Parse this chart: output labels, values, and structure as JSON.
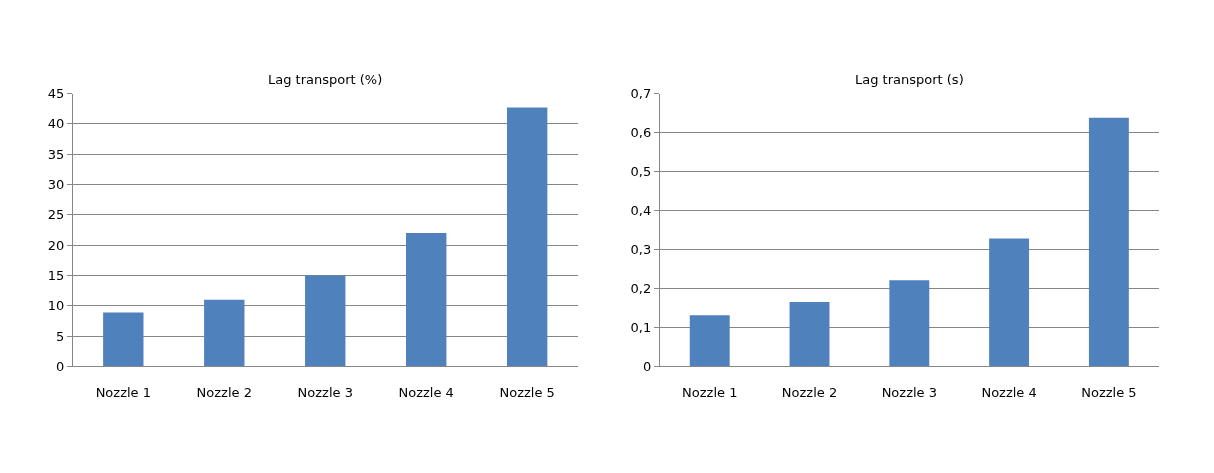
{
  "chart_data": [
    {
      "type": "bar",
      "title": "Lag transport (%)",
      "categories": [
        "Nozzle 1",
        "Nozzle 2",
        "Nozzle 3",
        "Nozzle 4",
        "Nozzle 5"
      ],
      "values": [
        8.9,
        11.0,
        15.0,
        22.0,
        42.7
      ],
      "color": "#4f81bd",
      "ylim": [
        0,
        45
      ],
      "yticks": [
        0,
        5,
        10,
        15,
        20,
        25,
        30,
        35,
        40,
        45
      ],
      "grid": "y"
    },
    {
      "type": "bar",
      "title": "Lag transport (s)",
      "categories": [
        "Nozzle 1",
        "Nozzle 2",
        "Nozzle 3",
        "Nozzle 4",
        "Nozzle 5"
      ],
      "values": [
        0.131,
        0.165,
        0.221,
        0.328,
        0.638
      ],
      "color": "#4f81bd",
      "ylim": [
        0,
        0.7
      ],
      "yticks": [
        0,
        {
          "value": 0.1,
          "label": "0,1"
        },
        {
          "value": 0.2,
          "label": "0,2"
        },
        {
          "value": 0.3,
          "label": "0,3"
        },
        {
          "value": 0.4,
          "label": "0,4"
        },
        {
          "value": 0.5,
          "label": "0,5"
        },
        {
          "value": 0.6,
          "label": "0,6"
        },
        {
          "value": 0.7,
          "label": "0,7"
        }
      ],
      "grid": "y"
    }
  ]
}
